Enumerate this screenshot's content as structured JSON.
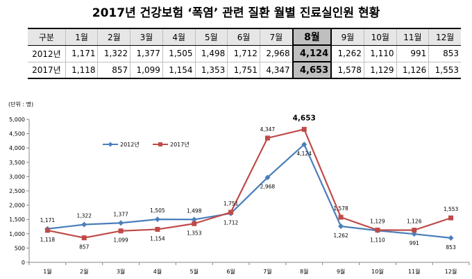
{
  "title": "2017년 건강보험 ‘폭염’ 관련 질환 월별 진료실인원 현황",
  "table": {
    "corner": "구분",
    "columns": [
      "1월",
      "2월",
      "3월",
      "4월",
      "5월",
      "6월",
      "7월",
      "8월",
      "9월",
      "10월",
      "11월",
      "12월"
    ],
    "highlight_column": "8월",
    "rows": [
      {
        "label": "2012년",
        "cells": [
          "1,171",
          "1,322",
          "1,377",
          "1,505",
          "1,498",
          "1,712",
          "2,968",
          "4,124",
          "1,262",
          "1,110",
          "991",
          "853"
        ]
      },
      {
        "label": "2017년",
        "cells": [
          "1,118",
          "857",
          "1,099",
          "1,154",
          "1,353",
          "1,751",
          "4,347",
          "4,653",
          "1,578",
          "1,129",
          "1,126",
          "1,553"
        ]
      }
    ]
  },
  "chart_data": {
    "type": "line",
    "unit_label": "(단위 : 명)",
    "categories": [
      "1월",
      "2월",
      "3월",
      "4월",
      "5월",
      "6월",
      "7월",
      "8월",
      "9월",
      "10월",
      "11월",
      "12월"
    ],
    "ylim": [
      0,
      5000
    ],
    "ytick_step": 500,
    "yticks": [
      "0",
      "500",
      "1,000",
      "1,500",
      "2,000",
      "2,500",
      "3,000",
      "3,500",
      "4,000",
      "4,500",
      "5,000"
    ],
    "grid": false,
    "legend_position": "top-left",
    "series": [
      {
        "name": "2012년",
        "color": "#4a7ebb",
        "marker": "diamond",
        "values": [
          1171,
          1322,
          1377,
          1505,
          1498,
          1712,
          2968,
          4124,
          1262,
          1110,
          991,
          853
        ],
        "labels": [
          "1,171",
          "1,322",
          "1,377",
          "1,505",
          "1,498",
          "1,712",
          "2,968",
          "4,124",
          "1,262",
          "1,110",
          "991",
          "853"
        ],
        "label_pos": [
          "above",
          "above",
          "above",
          "above",
          "above",
          "below",
          "below",
          "below",
          "below",
          "below",
          "below",
          "below"
        ]
      },
      {
        "name": "2017년",
        "color": "#be4b48",
        "marker": "square",
        "values": [
          1118,
          857,
          1099,
          1154,
          1353,
          1751,
          4347,
          4653,
          1578,
          1129,
          1126,
          1553
        ],
        "labels": [
          "1,118",
          "857",
          "1,099",
          "1,154",
          "1,353",
          "1,751",
          "4,347",
          "4,653",
          "1,578",
          "1,129",
          "1,126",
          "1,553"
        ],
        "label_pos": [
          "below",
          "below",
          "below",
          "below",
          "below",
          "above",
          "above",
          "above",
          "above",
          "above",
          "above",
          "above"
        ]
      }
    ],
    "emphasized_label": "4,653"
  }
}
